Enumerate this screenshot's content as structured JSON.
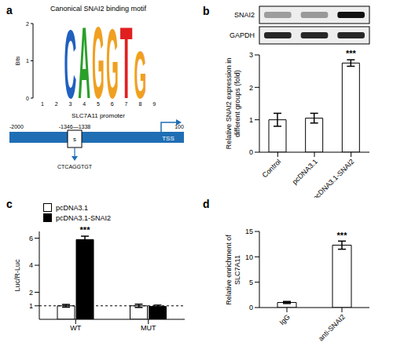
{
  "panel_a": {
    "letter": "a",
    "title": "Canonical SNAI2 binding motif",
    "logo": {
      "ylabel": "Bits",
      "ylim": [
        0,
        2
      ],
      "yticks": [
        0,
        1,
        2
      ],
      "positions": [
        1,
        2,
        3,
        4,
        5,
        6,
        7,
        8,
        9
      ],
      "letters": [
        {
          "position": 3,
          "letter": "C",
          "bits": 1.9,
          "color": "#2060c0"
        },
        {
          "position": 4,
          "letter": "A",
          "bits": 2.0,
          "color": "#2aa02a"
        },
        {
          "position": 5,
          "letter": "G",
          "bits": 2.0,
          "color": "#f0a020"
        },
        {
          "position": 6,
          "letter": "G",
          "bits": 1.95,
          "color": "#f0a020"
        },
        {
          "position": 7,
          "letter": "T",
          "bits": 2.0,
          "color": "#e02020"
        },
        {
          "position": 8,
          "letter": "G",
          "bits": 1.3,
          "color": "#f0a020"
        }
      ]
    },
    "promoter": {
      "title": "SLC7A11 promoter",
      "start_label": "-2000",
      "end_label": "100",
      "site_label": "-1346—1338",
      "site_mark": "s",
      "site_sequence": "CTCAGGTGT",
      "tss_label": "TSS"
    }
  },
  "blot": {
    "labels": [
      "SNAI2",
      "GAPDH"
    ]
  },
  "chart_data": [
    {
      "title": "b",
      "type": "bar",
      "categories": [
        "Control",
        "pcDNA3.1",
        "pcDNA3.1-SNAI2"
      ],
      "values": [
        1.0,
        1.05,
        2.75
      ],
      "errors": [
        0.2,
        0.15,
        0.1
      ],
      "color": "#ffffff",
      "ylabel": "Relative SNAI2 expression in different groups (fold)",
      "ylim": [
        0,
        3
      ],
      "yticks": [
        0,
        1,
        2,
        3
      ],
      "annotations": [
        {
          "category": "pcDNA3.1-SNAI2",
          "text": "***"
        }
      ]
    },
    {
      "title": "c",
      "type": "bar",
      "categories": [
        "WT",
        "MUT"
      ],
      "series": [
        {
          "name": "pcDNA3.1",
          "color": "#ffffff",
          "values": [
            1.0,
            1.0
          ],
          "errors": [
            0.1,
            0.12
          ]
        },
        {
          "name": "pcDNA3.1-SNAI2",
          "color": "#000000",
          "values": [
            5.9,
            0.95
          ],
          "errors": [
            0.25,
            0.1
          ]
        }
      ],
      "ylabel": "Luc/R-Luc",
      "ylim": [
        0,
        6.5
      ],
      "yticks": [
        1,
        2,
        4,
        6
      ],
      "reference_line": 1,
      "legend": "upper left",
      "annotations": [
        {
          "category": "WT",
          "series": "pcDNA3.1-SNAI2",
          "text": "***"
        }
      ]
    },
    {
      "title": "d",
      "type": "bar",
      "categories": [
        "IgG",
        "anti-SNAI2"
      ],
      "values": [
        1.0,
        12.3
      ],
      "errors": [
        0.2,
        0.8
      ],
      "color": "#ffffff",
      "ylabel": "Relative enrichment of SLC7A11",
      "ylim": [
        0,
        15
      ],
      "yticks": [
        0,
        5,
        10,
        15
      ],
      "annotations": [
        {
          "category": "anti-SNAI2",
          "text": "***"
        }
      ]
    }
  ]
}
